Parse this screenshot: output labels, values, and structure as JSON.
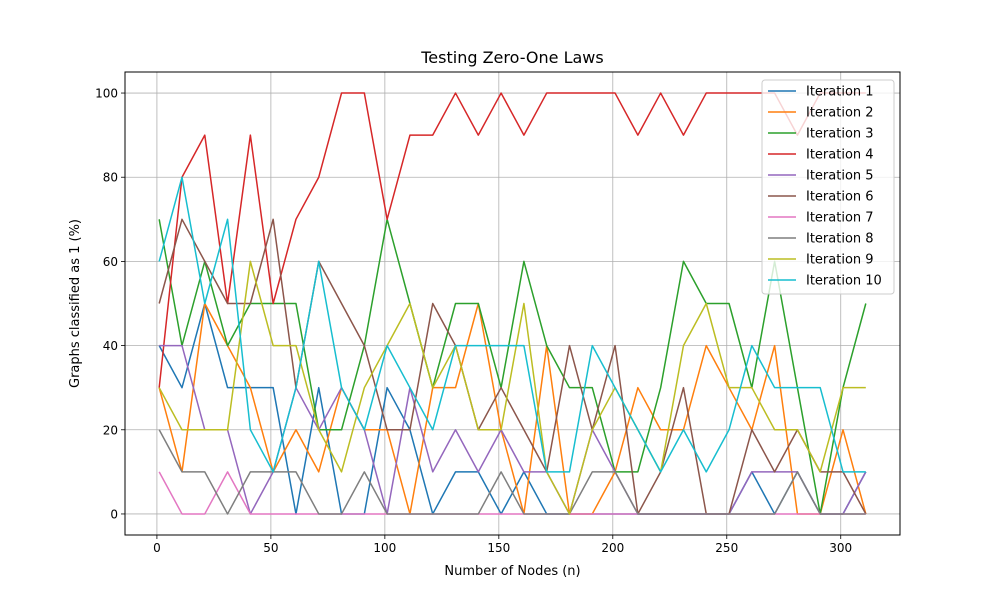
{
  "chart_data": {
    "type": "line",
    "title": "Testing Zero-One Laws",
    "xlabel": "Number of Nodes (n)",
    "ylabel": "Graphs classified as 1 (%)",
    "x": [
      1,
      11,
      21,
      31,
      41,
      51,
      61,
      71,
      81,
      91,
      101,
      111,
      121,
      131,
      141,
      151,
      161,
      171,
      181,
      191,
      201,
      211,
      221,
      231,
      241,
      251,
      261,
      271,
      281,
      291,
      301,
      311
    ],
    "xlim": [
      -14,
      326
    ],
    "ylim": [
      -5,
      105
    ],
    "xticks": [
      0,
      50,
      100,
      150,
      200,
      250,
      300
    ],
    "yticks": [
      0,
      20,
      40,
      60,
      80,
      100
    ],
    "grid": true,
    "legend_position": "top-right",
    "series": [
      {
        "name": "Iteration 1",
        "color": "#1f77b4",
        "values": [
          40,
          30,
          50,
          30,
          30,
          30,
          0,
          30,
          0,
          0,
          30,
          20,
          0,
          10,
          10,
          0,
          10,
          0,
          0,
          0,
          0,
          0,
          0,
          0,
          0,
          0,
          10,
          0,
          10,
          0,
          0,
          10
        ]
      },
      {
        "name": "Iteration 2",
        "color": "#ff7f0e",
        "values": [
          30,
          10,
          50,
          40,
          30,
          10,
          20,
          10,
          30,
          20,
          20,
          0,
          30,
          30,
          50,
          20,
          0,
          40,
          0,
          0,
          10,
          30,
          20,
          20,
          40,
          30,
          20,
          40,
          0,
          0,
          20,
          0
        ]
      },
      {
        "name": "Iteration 3",
        "color": "#2ca02c",
        "values": [
          70,
          40,
          60,
          40,
          50,
          50,
          50,
          20,
          20,
          40,
          70,
          50,
          30,
          50,
          50,
          30,
          60,
          40,
          30,
          30,
          10,
          10,
          30,
          60,
          50,
          50,
          30,
          60,
          30,
          0,
          30,
          50
        ]
      },
      {
        "name": "Iteration 4",
        "color": "#d62728",
        "values": [
          30,
          80,
          90,
          50,
          90,
          50,
          70,
          80,
          100,
          100,
          70,
          90,
          90,
          100,
          90,
          100,
          90,
          100,
          100,
          100,
          100,
          90,
          100,
          90,
          100,
          100,
          100,
          100,
          90,
          100,
          100,
          100
        ]
      },
      {
        "name": "Iteration 5",
        "color": "#9467bd",
        "values": [
          40,
          40,
          20,
          20,
          0,
          10,
          30,
          20,
          30,
          20,
          0,
          30,
          10,
          20,
          10,
          20,
          10,
          10,
          0,
          20,
          10,
          0,
          0,
          0,
          0,
          0,
          10,
          10,
          10,
          0,
          0,
          10
        ]
      },
      {
        "name": "Iteration 6",
        "color": "#8c564b",
        "values": [
          50,
          70,
          60,
          50,
          50,
          70,
          30,
          60,
          50,
          40,
          20,
          20,
          50,
          40,
          20,
          30,
          20,
          10,
          40,
          20,
          40,
          0,
          10,
          30,
          0,
          0,
          20,
          10,
          20,
          10,
          10,
          0
        ]
      },
      {
        "name": "Iteration 7",
        "color": "#e377c2",
        "values": [
          10,
          0,
          0,
          10,
          0,
          0,
          0,
          0,
          0,
          0,
          0,
          0,
          0,
          0,
          0,
          0,
          0,
          0,
          0,
          0,
          0,
          0,
          0,
          0,
          0,
          0,
          0,
          0,
          0,
          0,
          0,
          0
        ]
      },
      {
        "name": "Iteration 8",
        "color": "#7f7f7f",
        "values": [
          20,
          10,
          10,
          0,
          10,
          10,
          10,
          0,
          0,
          10,
          0,
          0,
          0,
          0,
          0,
          10,
          0,
          0,
          0,
          10,
          10,
          0,
          0,
          0,
          0,
          0,
          0,
          0,
          10,
          0,
          0,
          0
        ]
      },
      {
        "name": "Iteration 9",
        "color": "#bcbd22",
        "values": [
          30,
          20,
          20,
          20,
          60,
          40,
          40,
          20,
          10,
          30,
          40,
          50,
          30,
          40,
          20,
          20,
          50,
          10,
          0,
          20,
          30,
          20,
          10,
          40,
          50,
          30,
          30,
          20,
          20,
          10,
          30,
          30
        ]
      },
      {
        "name": "Iteration 10",
        "color": "#17becf",
        "values": [
          60,
          80,
          50,
          70,
          20,
          10,
          30,
          60,
          30,
          20,
          40,
          30,
          20,
          40,
          40,
          40,
          40,
          10,
          10,
          40,
          30,
          20,
          10,
          20,
          10,
          20,
          40,
          30,
          30,
          30,
          10,
          10
        ]
      }
    ]
  }
}
